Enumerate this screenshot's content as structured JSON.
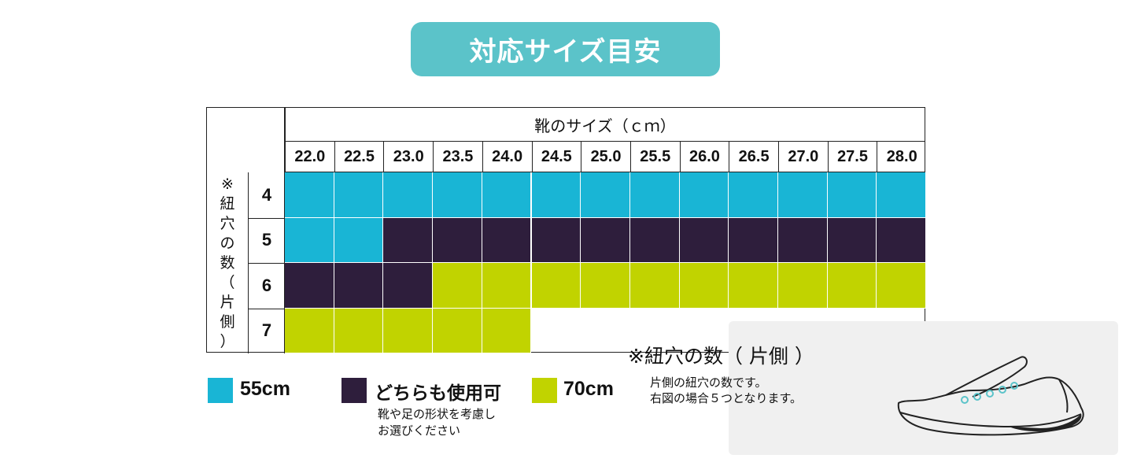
{
  "title": "対応サイズ目安",
  "table": {
    "size_header": "靴のサイズ（ｃｍ）",
    "sizes": [
      "22.0",
      "22.5",
      "23.0",
      "23.5",
      "24.0",
      "24.5",
      "25.0",
      "25.5",
      "26.0",
      "26.5",
      "27.0",
      "27.5",
      "28.0"
    ],
    "row_label_chars": [
      "※",
      "紐",
      "穴",
      "の",
      "数",
      "（",
      "片",
      "側",
      "）"
    ],
    "eyelet_counts": [
      "4",
      "5",
      "6",
      "7"
    ],
    "grid": [
      [
        "55cm",
        "55cm",
        "55cm",
        "55cm",
        "55cm",
        "55cm",
        "55cm",
        "55cm",
        "55cm",
        "55cm",
        "55cm",
        "55cm",
        "55cm"
      ],
      [
        "55cm",
        "55cm",
        "both",
        "both",
        "both",
        "both",
        "both",
        "both",
        "both",
        "both",
        "both",
        "both",
        "both"
      ],
      [
        "both",
        "both",
        "both",
        "70cm",
        "70cm",
        "70cm",
        "70cm",
        "70cm",
        "70cm",
        "70cm",
        "70cm",
        "70cm",
        "70cm"
      ],
      [
        "70cm",
        "70cm",
        "70cm",
        "70cm",
        "70cm",
        "",
        "",
        "",
        "",
        "",
        "",
        "",
        ""
      ]
    ]
  },
  "colors": {
    "55cm": "#19b5d5",
    "both": "#2e1e3c",
    "70cm": "#c1d300",
    "title_bg": "#5bc3c9"
  },
  "legend": {
    "item_55": "55cm",
    "item_both": "どちらも使用可",
    "item_both_note": [
      "靴や足の形状を考慮し",
      "お選びください"
    ],
    "item_70": "70cm"
  },
  "info": {
    "title": "※紐穴の数（ 片側 ）",
    "description": [
      "片側の紐穴の数です。",
      "右図の場合５つとなります。"
    ]
  }
}
